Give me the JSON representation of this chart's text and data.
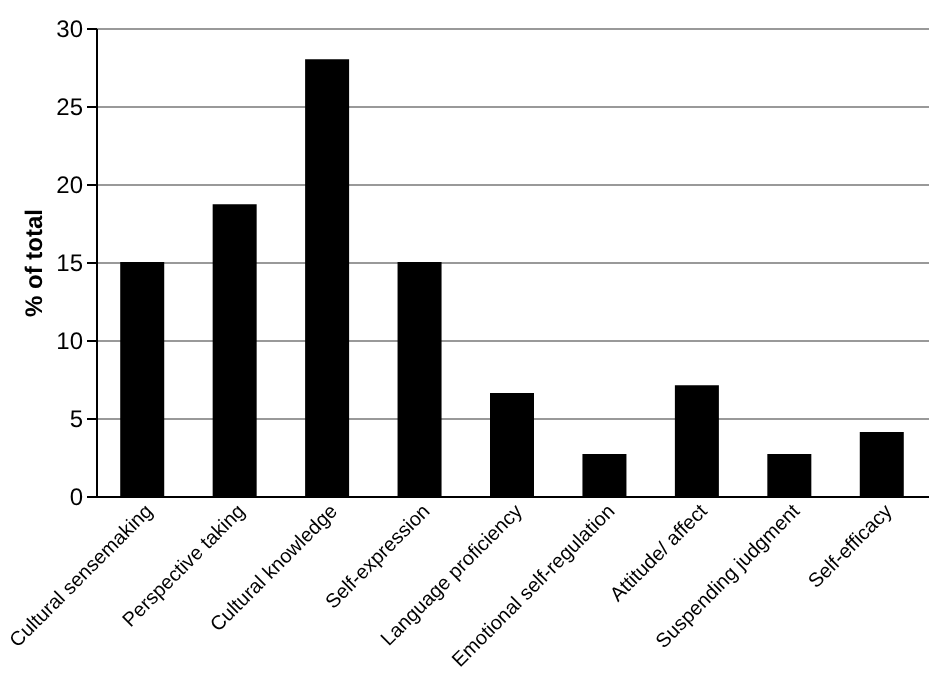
{
  "chart_data": {
    "type": "bar",
    "ylabel": "% of total",
    "categories": [
      "Cultural sensemaking",
      "Perspective taking",
      "Cultural knowledge",
      "Self-expression",
      "Language proficiency",
      "Emotional self-regulation",
      "Attitude/ affect",
      "Suspending judgment",
      "Self-efficacy"
    ],
    "values": [
      15,
      18.7,
      28,
      15,
      6.6,
      2.7,
      7.1,
      2.7,
      4.1
    ],
    "color": "#000000",
    "ylim": [
      0,
      30
    ],
    "yticks": [
      0,
      5,
      10,
      15,
      20,
      25,
      30
    ],
    "grid": "y"
  }
}
